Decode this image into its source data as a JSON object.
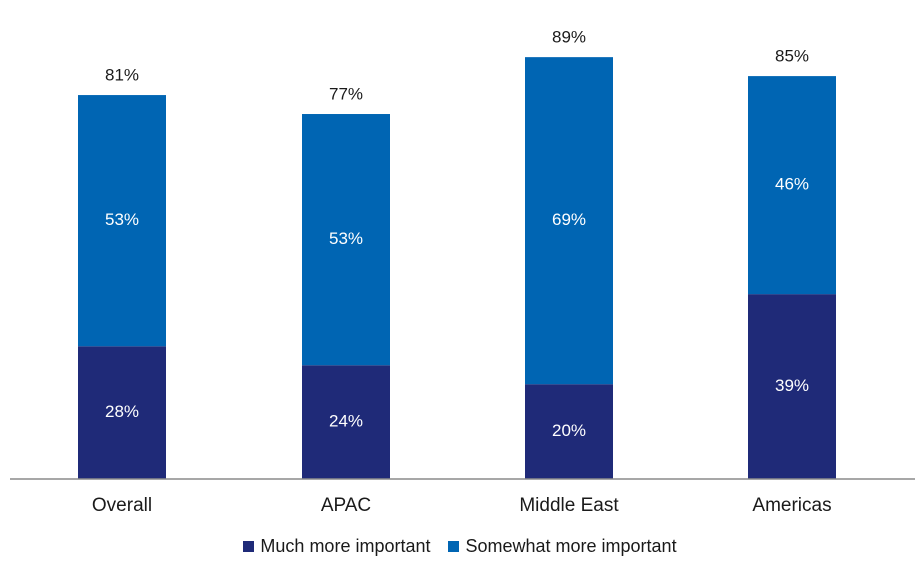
{
  "chart_data": {
    "type": "bar",
    "stacked": true,
    "categories": [
      "Overall",
      "APAC",
      "Middle East",
      "Americas"
    ],
    "series": [
      {
        "name": "Much more important",
        "values": [
          28,
          24,
          20,
          39
        ],
        "color": "#1f2a78"
      },
      {
        "name": "Somewhat more important",
        "values": [
          53,
          53,
          69,
          46
        ],
        "color": "#0065b3"
      }
    ],
    "totals": [
      81,
      77,
      89,
      85
    ],
    "value_suffix": "%",
    "ylim": [
      0,
      100
    ],
    "grid": false,
    "legend_position": "bottom"
  },
  "legend": {
    "items": [
      {
        "label": "Much more important",
        "color": "#1f2a78"
      },
      {
        "label": "Somewhat more important",
        "color": "#0065b3"
      }
    ]
  }
}
